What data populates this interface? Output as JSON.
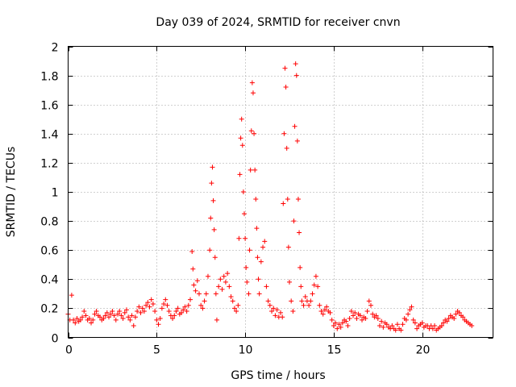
{
  "chart_data": {
    "type": "scatter",
    "title": "Day 039 of 2024, SRMTID for receiver cnvn",
    "xlabel": "GPS time / hours",
    "ylabel": "SRMTID / TECUs",
    "xlim": [
      0,
      24
    ],
    "ylim": [
      0,
      2
    ],
    "xticks": [
      0,
      5,
      10,
      15,
      20
    ],
    "xtick_labels": [
      "0",
      "5",
      "10",
      "15",
      "20"
    ],
    "yticks": [
      0,
      0.2,
      0.4,
      0.6,
      0.8,
      1,
      1.2,
      1.4,
      1.6,
      1.8,
      2
    ],
    "ytick_labels": [
      "0",
      "0.2",
      "0.4",
      "0.6",
      "0.8",
      "1",
      "1.2",
      "1.4",
      "1.6",
      "1.8",
      "2"
    ],
    "grid": true,
    "marker": "plus",
    "color": "#ff0000",
    "series": [
      {
        "name": "SRMTID",
        "points": [
          [
            0.0,
            0.16
          ],
          [
            0.1,
            0.12
          ],
          [
            0.2,
            0.29
          ],
          [
            0.3,
            0.12
          ],
          [
            0.4,
            0.1
          ],
          [
            0.5,
            0.13
          ],
          [
            0.6,
            0.11
          ],
          [
            0.7,
            0.12
          ],
          [
            0.8,
            0.14
          ],
          [
            0.9,
            0.18
          ],
          [
            1.0,
            0.15
          ],
          [
            1.1,
            0.12
          ],
          [
            1.2,
            0.13
          ],
          [
            1.3,
            0.1
          ],
          [
            1.4,
            0.12
          ],
          [
            1.5,
            0.16
          ],
          [
            1.6,
            0.18
          ],
          [
            1.7,
            0.15
          ],
          [
            1.8,
            0.14
          ],
          [
            1.9,
            0.12
          ],
          [
            2.0,
            0.13
          ],
          [
            2.1,
            0.15
          ],
          [
            2.2,
            0.17
          ],
          [
            2.3,
            0.14
          ],
          [
            2.4,
            0.16
          ],
          [
            2.5,
            0.18
          ],
          [
            2.6,
            0.15
          ],
          [
            2.7,
            0.12
          ],
          [
            2.8,
            0.16
          ],
          [
            2.9,
            0.18
          ],
          [
            3.0,
            0.15
          ],
          [
            3.1,
            0.13
          ],
          [
            3.2,
            0.17
          ],
          [
            3.3,
            0.19
          ],
          [
            3.4,
            0.14
          ],
          [
            3.5,
            0.12
          ],
          [
            3.6,
            0.15
          ],
          [
            3.7,
            0.08
          ],
          [
            3.8,
            0.14
          ],
          [
            3.9,
            0.18
          ],
          [
            4.0,
            0.21
          ],
          [
            4.1,
            0.17
          ],
          [
            4.2,
            0.2
          ],
          [
            4.3,
            0.18
          ],
          [
            4.4,
            0.22
          ],
          [
            4.5,
            0.24
          ],
          [
            4.6,
            0.21
          ],
          [
            4.7,
            0.26
          ],
          [
            4.8,
            0.23
          ],
          [
            4.9,
            0.18
          ],
          [
            5.0,
            0.12
          ],
          [
            5.1,
            0.09
          ],
          [
            5.2,
            0.13
          ],
          [
            5.3,
            0.2
          ],
          [
            5.4,
            0.23
          ],
          [
            5.5,
            0.26
          ],
          [
            5.6,
            0.22
          ],
          [
            5.7,
            0.18
          ],
          [
            5.8,
            0.15
          ],
          [
            5.9,
            0.13
          ],
          [
            6.0,
            0.15
          ],
          [
            6.1,
            0.18
          ],
          [
            6.2,
            0.2
          ],
          [
            6.3,
            0.16
          ],
          [
            6.4,
            0.17
          ],
          [
            6.5,
            0.19
          ],
          [
            6.6,
            0.21
          ],
          [
            6.7,
            0.18
          ],
          [
            6.8,
            0.22
          ],
          [
            6.9,
            0.26
          ],
          [
            7.0,
            0.59
          ],
          [
            7.05,
            0.47
          ],
          [
            7.1,
            0.36
          ],
          [
            7.2,
            0.32
          ],
          [
            7.3,
            0.39
          ],
          [
            7.4,
            0.3
          ],
          [
            7.5,
            0.22
          ],
          [
            7.6,
            0.2
          ],
          [
            7.7,
            0.25
          ],
          [
            7.8,
            0.3
          ],
          [
            7.9,
            0.42
          ],
          [
            8.0,
            0.6
          ],
          [
            8.05,
            0.82
          ],
          [
            8.1,
            1.06
          ],
          [
            8.15,
            1.17
          ],
          [
            8.2,
            0.94
          ],
          [
            8.25,
            0.74
          ],
          [
            8.3,
            0.55
          ],
          [
            8.35,
            0.3
          ],
          [
            8.4,
            0.12
          ],
          [
            8.5,
            0.35
          ],
          [
            8.6,
            0.4
          ],
          [
            8.7,
            0.33
          ],
          [
            8.8,
            0.42
          ],
          [
            8.9,
            0.38
          ],
          [
            9.0,
            0.44
          ],
          [
            9.1,
            0.35
          ],
          [
            9.2,
            0.28
          ],
          [
            9.3,
            0.25
          ],
          [
            9.4,
            0.2
          ],
          [
            9.5,
            0.18
          ],
          [
            9.6,
            0.22
          ],
          [
            9.65,
            0.68
          ],
          [
            9.7,
            1.12
          ],
          [
            9.75,
            1.37
          ],
          [
            9.8,
            1.5
          ],
          [
            9.85,
            1.32
          ],
          [
            9.9,
            1.0
          ],
          [
            9.95,
            0.85
          ],
          [
            10.0,
            0.68
          ],
          [
            10.05,
            0.48
          ],
          [
            10.1,
            0.38
          ],
          [
            10.2,
            0.3
          ],
          [
            10.25,
            0.6
          ],
          [
            10.3,
            1.15
          ],
          [
            10.35,
            1.42
          ],
          [
            10.4,
            1.75
          ],
          [
            10.45,
            1.68
          ],
          [
            10.5,
            1.4
          ],
          [
            10.55,
            1.15
          ],
          [
            10.6,
            0.95
          ],
          [
            10.65,
            0.75
          ],
          [
            10.7,
            0.55
          ],
          [
            10.75,
            0.4
          ],
          [
            10.8,
            0.3
          ],
          [
            10.9,
            0.52
          ],
          [
            11.0,
            0.62
          ],
          [
            11.1,
            0.66
          ],
          [
            11.2,
            0.35
          ],
          [
            11.3,
            0.25
          ],
          [
            11.4,
            0.22
          ],
          [
            11.5,
            0.18
          ],
          [
            11.6,
            0.2
          ],
          [
            11.7,
            0.15
          ],
          [
            11.8,
            0.19
          ],
          [
            11.9,
            0.14
          ],
          [
            12.0,
            0.17
          ],
          [
            12.1,
            0.14
          ],
          [
            12.15,
            0.92
          ],
          [
            12.2,
            1.4
          ],
          [
            12.25,
            1.85
          ],
          [
            12.3,
            1.72
          ],
          [
            12.35,
            1.3
          ],
          [
            12.4,
            0.95
          ],
          [
            12.45,
            0.62
          ],
          [
            12.5,
            0.38
          ],
          [
            12.6,
            0.25
          ],
          [
            12.7,
            0.18
          ],
          [
            12.75,
            0.8
          ],
          [
            12.8,
            1.45
          ],
          [
            12.85,
            1.88
          ],
          [
            12.9,
            1.8
          ],
          [
            12.95,
            1.35
          ],
          [
            13.0,
            0.95
          ],
          [
            13.05,
            0.72
          ],
          [
            13.1,
            0.48
          ],
          [
            13.15,
            0.35
          ],
          [
            13.2,
            0.25
          ],
          [
            13.3,
            0.22
          ],
          [
            13.4,
            0.28
          ],
          [
            13.5,
            0.25
          ],
          [
            13.6,
            0.22
          ],
          [
            13.7,
            0.25
          ],
          [
            13.8,
            0.3
          ],
          [
            13.9,
            0.36
          ],
          [
            14.0,
            0.42
          ],
          [
            14.1,
            0.35
          ],
          [
            14.2,
            0.22
          ],
          [
            14.3,
            0.18
          ],
          [
            14.4,
            0.16
          ],
          [
            14.5,
            0.19
          ],
          [
            14.6,
            0.21
          ],
          [
            14.7,
            0.18
          ],
          [
            14.8,
            0.17
          ],
          [
            14.9,
            0.12
          ],
          [
            15.0,
            0.08
          ],
          [
            15.1,
            0.1
          ],
          [
            15.2,
            0.06
          ],
          [
            15.3,
            0.09
          ],
          [
            15.4,
            0.07
          ],
          [
            15.5,
            0.1
          ],
          [
            15.6,
            0.12
          ],
          [
            15.7,
            0.11
          ],
          [
            15.8,
            0.08
          ],
          [
            15.9,
            0.13
          ],
          [
            16.0,
            0.18
          ],
          [
            16.1,
            0.15
          ],
          [
            16.2,
            0.17
          ],
          [
            16.3,
            0.13
          ],
          [
            16.4,
            0.16
          ],
          [
            16.5,
            0.15
          ],
          [
            16.6,
            0.12
          ],
          [
            16.7,
            0.14
          ],
          [
            16.8,
            0.13
          ],
          [
            16.9,
            0.18
          ],
          [
            17.0,
            0.25
          ],
          [
            17.1,
            0.22
          ],
          [
            17.2,
            0.16
          ],
          [
            17.3,
            0.14
          ],
          [
            17.4,
            0.15
          ],
          [
            17.5,
            0.13
          ],
          [
            17.6,
            0.08
          ],
          [
            17.7,
            0.11
          ],
          [
            17.8,
            0.07
          ],
          [
            17.9,
            0.1
          ],
          [
            18.0,
            0.09
          ],
          [
            18.1,
            0.07
          ],
          [
            18.2,
            0.06
          ],
          [
            18.3,
            0.08
          ],
          [
            18.4,
            0.06
          ],
          [
            18.5,
            0.05
          ],
          [
            18.6,
            0.09
          ],
          [
            18.7,
            0.06
          ],
          [
            18.8,
            0.05
          ],
          [
            18.9,
            0.09
          ],
          [
            19.0,
            0.13
          ],
          [
            19.1,
            0.12
          ],
          [
            19.2,
            0.16
          ],
          [
            19.3,
            0.19
          ],
          [
            19.4,
            0.21
          ],
          [
            19.5,
            0.12
          ],
          [
            19.6,
            0.1
          ],
          [
            19.7,
            0.06
          ],
          [
            19.8,
            0.08
          ],
          [
            19.9,
            0.09
          ],
          [
            20.0,
            0.1
          ],
          [
            20.1,
            0.07
          ],
          [
            20.2,
            0.08
          ],
          [
            20.3,
            0.08
          ],
          [
            20.4,
            0.06
          ],
          [
            20.5,
            0.08
          ],
          [
            20.6,
            0.06
          ],
          [
            20.7,
            0.08
          ],
          [
            20.8,
            0.05
          ],
          [
            20.9,
            0.06
          ],
          [
            21.0,
            0.07
          ],
          [
            21.1,
            0.08
          ],
          [
            21.2,
            0.1
          ],
          [
            21.3,
            0.12
          ],
          [
            21.4,
            0.11
          ],
          [
            21.5,
            0.13
          ],
          [
            21.6,
            0.15
          ],
          [
            21.7,
            0.14
          ],
          [
            21.8,
            0.13
          ],
          [
            21.9,
            0.16
          ],
          [
            22.0,
            0.18
          ],
          [
            22.1,
            0.17
          ],
          [
            22.2,
            0.15
          ],
          [
            22.3,
            0.14
          ],
          [
            22.4,
            0.12
          ],
          [
            22.5,
            0.11
          ],
          [
            22.6,
            0.1
          ],
          [
            22.7,
            0.09
          ],
          [
            22.8,
            0.08
          ]
        ]
      }
    ]
  }
}
